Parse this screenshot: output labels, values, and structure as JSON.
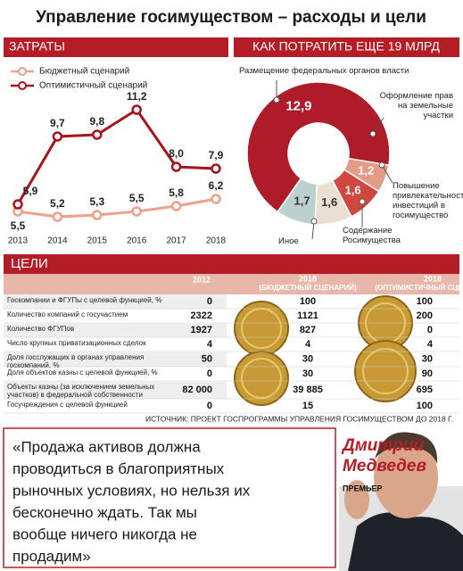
{
  "header": {
    "title": "Управление госимуществом – расходы и цели"
  },
  "chart_data": [
    {
      "type": "line",
      "title": "ЗАТРАТЫ",
      "x": [
        2013,
        2014,
        2015,
        2016,
        2017,
        2018
      ],
      "series": [
        {
          "name": "Бюджетный сценарий",
          "color": "#eda08a",
          "values": [
            5.5,
            5.2,
            5.3,
            5.5,
            5.8,
            6.2
          ],
          "value_labels": [
            "5,5",
            "5,2",
            "5,3",
            "5,5",
            "5,8",
            "6,2"
          ]
        },
        {
          "name": "Оптимистичный сценарий",
          "color": "#a5141f",
          "values": [
            5.9,
            9.7,
            9.8,
            11.2,
            8.0,
            7.9
          ],
          "value_labels": [
            "5,9",
            "9,7",
            "9,8",
            "11,2",
            "8,0",
            "7,9"
          ]
        }
      ]
    },
    {
      "type": "pie",
      "title": "КАК ПОТРАТИТЬ ЕЩЕ 19 МЛРД",
      "categories": [
        "Размещение федеральных органов власти",
        "Оформление прав на земельные участки",
        "Повышение привлекательности инвестиций в госимущество",
        "Содержание Росимущества",
        "Иное"
      ],
      "values": [
        12.9,
        1.2,
        1.6,
        1.6,
        1.7
      ],
      "value_labels": [
        "12,9",
        "1,2",
        "1,6",
        "1,6",
        "1,7"
      ],
      "colors": [
        "#ad1c28",
        "#e59c86",
        "#d0473f",
        "#e9e0d2",
        "#bcd0cf"
      ]
    }
  ],
  "table": {
    "title": "ЦЕЛИ",
    "columns": [
      {
        "year": "2012"
      },
      {
        "year": "2018",
        "note": "(БЮДЖЕТНЫЙ СЦЕНАРИЙ)"
      },
      {
        "year": "2018",
        "note": "(ОПТИМИСТИЧНЫЙ СЦЕНАРИЙ)"
      }
    ],
    "rows": [
      [
        "Госкомпании и ФГУПы с целевой функцией, %",
        "0",
        "100",
        "100"
      ],
      [
        "Количество компаний с госучастием",
        "2322",
        "1121",
        "200"
      ],
      [
        "Количество ФГУПов",
        "1927",
        "827",
        "0"
      ],
      [
        "Число крупных приватизационных сделок",
        "4",
        "4",
        "4"
      ],
      [
        "Доля госслужащих в органах управления госкомпаний, %",
        "50",
        "30",
        "30"
      ],
      [
        "Доля объектов казны с целевой функцией, %",
        "0",
        "30",
        "90"
      ],
      [
        "Объекты казны (за исключением земельных участков) в федеральной собственности",
        "82 000",
        "39 885",
        "695"
      ],
      [
        "Госучреждения с целевой функцией",
        "0",
        "15",
        "100"
      ]
    ],
    "source": "ИСТОЧНИК: ПРОЕКТ ГОСПРОГРАММЫ УПРАВЛЕНИЯ ГОСИМУЩЕСТВОМ ДО 2018 Г."
  },
  "quote": {
    "lines": [
      "«Продажа активов должна",
      "проводиться в благоприятных",
      "рыночных условиях, но нельзя их",
      "бесконечно ждать. Так мы",
      "вообще ничего никогда не",
      "продадим»"
    ],
    "name": [
      "Дмитрий",
      "Медведев"
    ],
    "role": "ПРЕМЬЕР"
  }
}
